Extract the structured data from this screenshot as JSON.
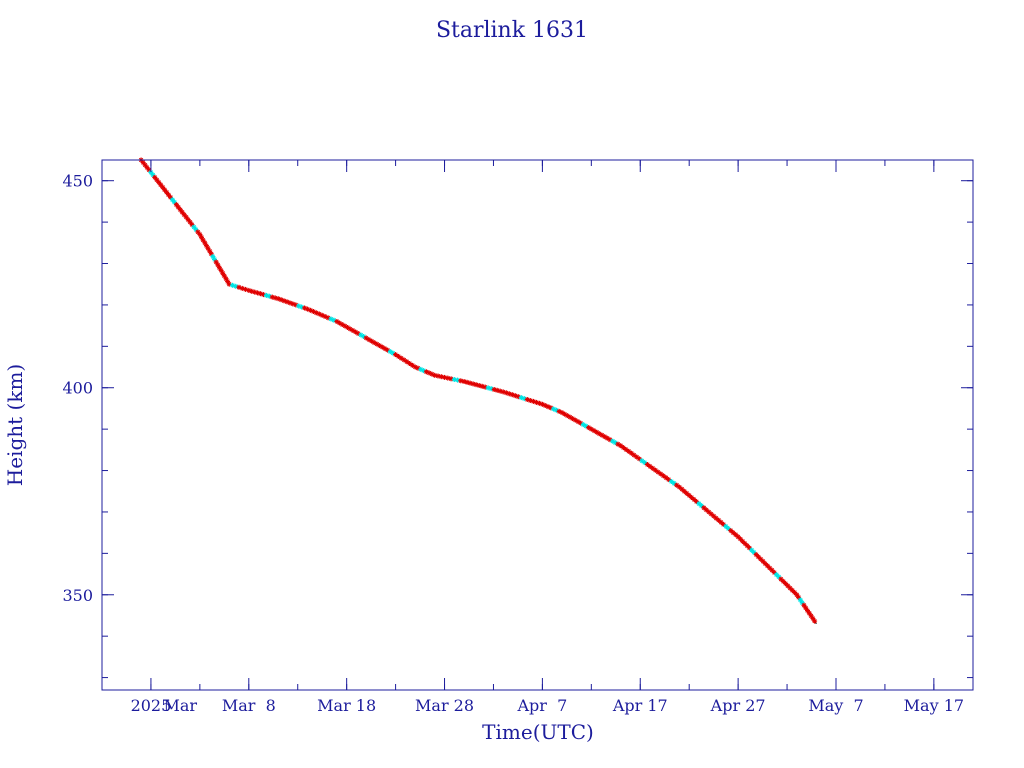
{
  "chart_data": {
    "type": "scatter",
    "title": "Starlink 1631",
    "xlabel": "Time(UTC)",
    "ylabel": "Height (km)",
    "x_ticks": [
      {
        "date": "2025-02-26",
        "label": "2025"
      },
      {
        "date": "2025-03-08",
        "label": "Mar  8"
      },
      {
        "date": "2025-03-18",
        "label": "Mar 18"
      },
      {
        "date": "2025-03-28",
        "label": "Mar 28"
      },
      {
        "date": "2025-04-07",
        "label": "Apr  7"
      },
      {
        "date": "2025-04-17",
        "label": "Apr 17"
      },
      {
        "date": "2025-04-27",
        "label": "Apr 27"
      },
      {
        "date": "2025-05-07",
        "label": "May  7"
      },
      {
        "date": "2025-05-17",
        "label": "May 17"
      }
    ],
    "month_labels": [
      {
        "date": "2025-03-01",
        "label": "Mar"
      }
    ],
    "y_ticks": [
      350,
      400,
      450
    ],
    "xlim": [
      "2025-02-21",
      "2025-05-21"
    ],
    "ylim": [
      327,
      455
    ],
    "grid": false,
    "colors": {
      "text": "#1c1c9c",
      "axis": "#1c1c9c",
      "line": "#000000",
      "marker_primary": "#e00000",
      "marker_secondary": "#00e5e5"
    },
    "series": [
      {
        "points": [
          [
            "2025-02-25",
            455
          ],
          [
            "2025-02-26",
            452
          ],
          [
            "2025-02-27",
            449
          ],
          [
            "2025-02-28",
            446
          ],
          [
            "2025-03-01",
            443
          ],
          [
            "2025-03-02",
            440
          ],
          [
            "2025-03-03",
            437
          ],
          [
            "2025-03-04",
            433
          ],
          [
            "2025-03-05",
            429
          ],
          [
            "2025-03-06",
            425
          ],
          [
            "2025-03-08",
            423.5
          ],
          [
            "2025-03-11",
            421.5
          ],
          [
            "2025-03-14",
            419
          ],
          [
            "2025-03-17",
            416
          ],
          [
            "2025-03-20",
            412
          ],
          [
            "2025-03-23",
            408
          ],
          [
            "2025-03-25",
            405
          ],
          [
            "2025-03-27",
            403
          ],
          [
            "2025-03-30",
            401.5
          ],
          [
            "2025-04-03",
            399
          ],
          [
            "2025-04-07",
            396
          ],
          [
            "2025-04-09",
            394
          ],
          [
            "2025-04-12",
            390
          ],
          [
            "2025-04-15",
            386
          ],
          [
            "2025-04-18",
            381
          ],
          [
            "2025-04-21",
            376
          ],
          [
            "2025-04-24",
            370
          ],
          [
            "2025-04-27",
            364
          ],
          [
            "2025-04-30",
            357
          ],
          [
            "2025-05-03",
            350
          ],
          [
            "2025-05-05",
            343
          ]
        ]
      }
    ]
  }
}
